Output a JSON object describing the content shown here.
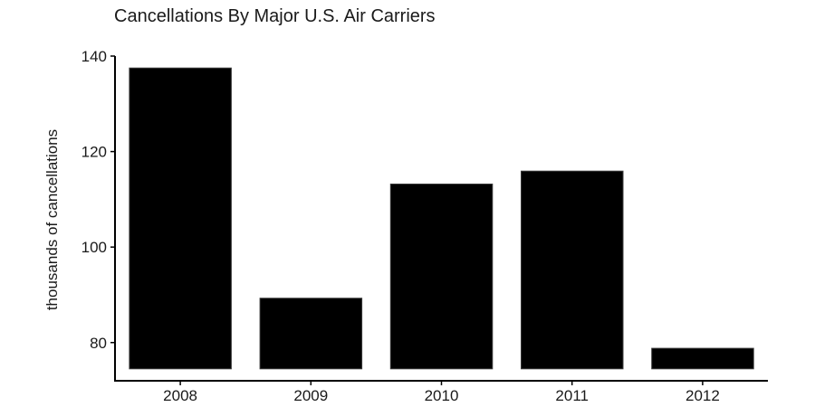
{
  "chart_data": {
    "type": "bar",
    "title": "Cancellations By Major U.S. Air Carriers",
    "xlabel": "",
    "ylabel": "thousands of cancellations",
    "categories": [
      "2008",
      "2009",
      "2010",
      "2011",
      "2012"
    ],
    "values": [
      137.5,
      89.3,
      113.2,
      115.9,
      78.8
    ],
    "ylim": [
      72,
      140
    ],
    "yticks": [
      80,
      100,
      120,
      140
    ],
    "bar_base": 74.5,
    "grid": false,
    "legend": "none",
    "bar_color": "#000000"
  }
}
